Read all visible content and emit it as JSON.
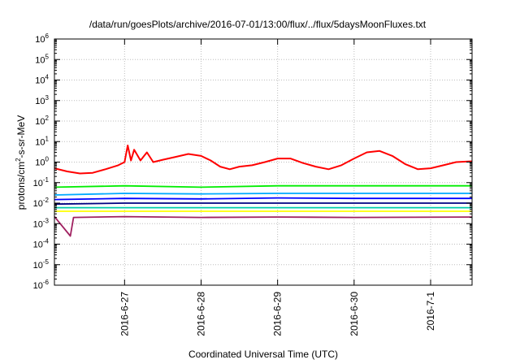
{
  "chart_data": {
    "type": "line",
    "title": "/data/run/goesPlots/archive/2016-07-01/13:00/flux/../flux/5daysMoonFluxes.txt",
    "xlabel": "Coordinated Universal Time (UTC)",
    "ylabel": {
      "main": "protons/cm",
      "sup": "2",
      "rest": "-s-sr-MeV"
    },
    "yscale": "log",
    "ylim_exp": [
      -6,
      6
    ],
    "ytick_exponents": [
      -6,
      -5,
      -4,
      -3,
      -2,
      -1,
      0,
      1,
      2,
      3,
      4,
      5,
      6
    ],
    "xlim": [
      "2016-06-26T02:00",
      "2016-07-01T13:00"
    ],
    "xticks": [
      {
        "date": "2016-06-27",
        "label": "2016-6-27"
      },
      {
        "date": "2016-06-28",
        "label": "2016-6-28"
      },
      {
        "date": "2016-06-29",
        "label": "2016-6-29"
      },
      {
        "date": "2016-06-30",
        "label": "2016-6-30"
      },
      {
        "date": "2016-07-01",
        "label": "2016-7-1"
      }
    ],
    "grid": true,
    "series": [
      {
        "color": "#ff0000",
        "points": [
          [
            "2016-06-26T02:00",
            0.5
          ],
          [
            "2016-06-26T06:00",
            0.35
          ],
          [
            "2016-06-26T10:00",
            0.28
          ],
          [
            "2016-06-26T14:00",
            0.3
          ],
          [
            "2016-06-26T18:00",
            0.45
          ],
          [
            "2016-06-26T22:00",
            0.7
          ],
          [
            "2016-06-27T00:00",
            1.0
          ],
          [
            "2016-06-27T01:00",
            6.5
          ],
          [
            "2016-06-27T02:00",
            1.2
          ],
          [
            "2016-06-27T03:00",
            4.0
          ],
          [
            "2016-06-27T05:00",
            1.2
          ],
          [
            "2016-06-27T07:00",
            3.0
          ],
          [
            "2016-06-27T09:00",
            1.0
          ],
          [
            "2016-06-27T12:00",
            1.3
          ],
          [
            "2016-06-27T16:00",
            1.8
          ],
          [
            "2016-06-27T20:00",
            2.5
          ],
          [
            "2016-06-28T00:00",
            2.0
          ],
          [
            "2016-06-28T03:00",
            1.2
          ],
          [
            "2016-06-28T06:00",
            0.6
          ],
          [
            "2016-06-28T09:00",
            0.45
          ],
          [
            "2016-06-28T12:00",
            0.6
          ],
          [
            "2016-06-28T16:00",
            0.7
          ],
          [
            "2016-06-28T20:00",
            1.0
          ],
          [
            "2016-06-29T00:00",
            1.5
          ],
          [
            "2016-06-29T04:00",
            1.5
          ],
          [
            "2016-06-29T08:00",
            0.9
          ],
          [
            "2016-06-29T12:00",
            0.6
          ],
          [
            "2016-06-29T16:00",
            0.45
          ],
          [
            "2016-06-29T20:00",
            0.7
          ],
          [
            "2016-06-30T00:00",
            1.5
          ],
          [
            "2016-06-30T04:00",
            3.0
          ],
          [
            "2016-06-30T08:00",
            3.5
          ],
          [
            "2016-06-30T12:00",
            2.0
          ],
          [
            "2016-06-30T16:00",
            0.8
          ],
          [
            "2016-06-30T20:00",
            0.45
          ],
          [
            "2016-07-01T00:00",
            0.5
          ],
          [
            "2016-07-01T04:00",
            0.7
          ],
          [
            "2016-07-01T08:00",
            1.0
          ],
          [
            "2016-07-01T13:00",
            1.1
          ]
        ]
      },
      {
        "color": "#00ee00",
        "points": [
          [
            "2016-06-26T02:00",
            0.06
          ],
          [
            "2016-06-27T00:00",
            0.07
          ],
          [
            "2016-06-28T00:00",
            0.06
          ],
          [
            "2016-06-29T00:00",
            0.07
          ],
          [
            "2016-06-30T00:00",
            0.07
          ],
          [
            "2016-07-01T13:00",
            0.07
          ]
        ]
      },
      {
        "color": "#00aaff",
        "points": [
          [
            "2016-06-26T02:00",
            0.025
          ],
          [
            "2016-06-27T00:00",
            0.03
          ],
          [
            "2016-06-28T00:00",
            0.028
          ],
          [
            "2016-06-29T00:00",
            0.03
          ],
          [
            "2016-06-30T00:00",
            0.03
          ],
          [
            "2016-07-01T13:00",
            0.03
          ]
        ]
      },
      {
        "color": "#0000ff",
        "points": [
          [
            "2016-06-26T02:00",
            0.015
          ],
          [
            "2016-06-27T00:00",
            0.017
          ],
          [
            "2016-06-28T00:00",
            0.016
          ],
          [
            "2016-06-29T00:00",
            0.018
          ],
          [
            "2016-06-30T00:00",
            0.017
          ],
          [
            "2016-07-01T13:00",
            0.017
          ]
        ]
      },
      {
        "color": "#000080",
        "points": [
          [
            "2016-06-26T02:00",
            0.009
          ],
          [
            "2016-06-27T00:00",
            0.01
          ],
          [
            "2016-06-28T00:00",
            0.01
          ],
          [
            "2016-06-29T00:00",
            0.01
          ],
          [
            "2016-06-30T00:00",
            0.01
          ],
          [
            "2016-07-01T13:00",
            0.01
          ]
        ]
      },
      {
        "color": "#00ccaa",
        "points": [
          [
            "2016-06-26T02:00",
            0.006
          ],
          [
            "2016-06-27T00:00",
            0.006
          ],
          [
            "2016-06-28T00:00",
            0.006
          ],
          [
            "2016-06-29T00:00",
            0.006
          ],
          [
            "2016-06-30T00:00",
            0.006
          ],
          [
            "2016-07-01T13:00",
            0.006
          ]
        ]
      },
      {
        "color": "#ffff00",
        "points": [
          [
            "2016-06-26T02:00",
            0.004
          ],
          [
            "2016-06-27T00:00",
            0.004
          ],
          [
            "2016-06-28T00:00",
            0.004
          ],
          [
            "2016-06-29T00:00",
            0.004
          ],
          [
            "2016-06-30T00:00",
            0.004
          ],
          [
            "2016-07-01T13:00",
            0.004
          ]
        ]
      },
      {
        "color": "#a02060",
        "points": [
          [
            "2016-06-26T02:00",
            0.0022
          ],
          [
            "2016-06-26T07:00",
            0.00025
          ],
          [
            "2016-06-26T08:00",
            0.002
          ],
          [
            "2016-06-27T00:00",
            0.0022
          ],
          [
            "2016-06-28T00:00",
            0.002
          ],
          [
            "2016-06-29T00:00",
            0.0021
          ],
          [
            "2016-06-30T00:00",
            0.002
          ],
          [
            "2016-07-01T13:00",
            0.0021
          ]
        ]
      }
    ]
  }
}
